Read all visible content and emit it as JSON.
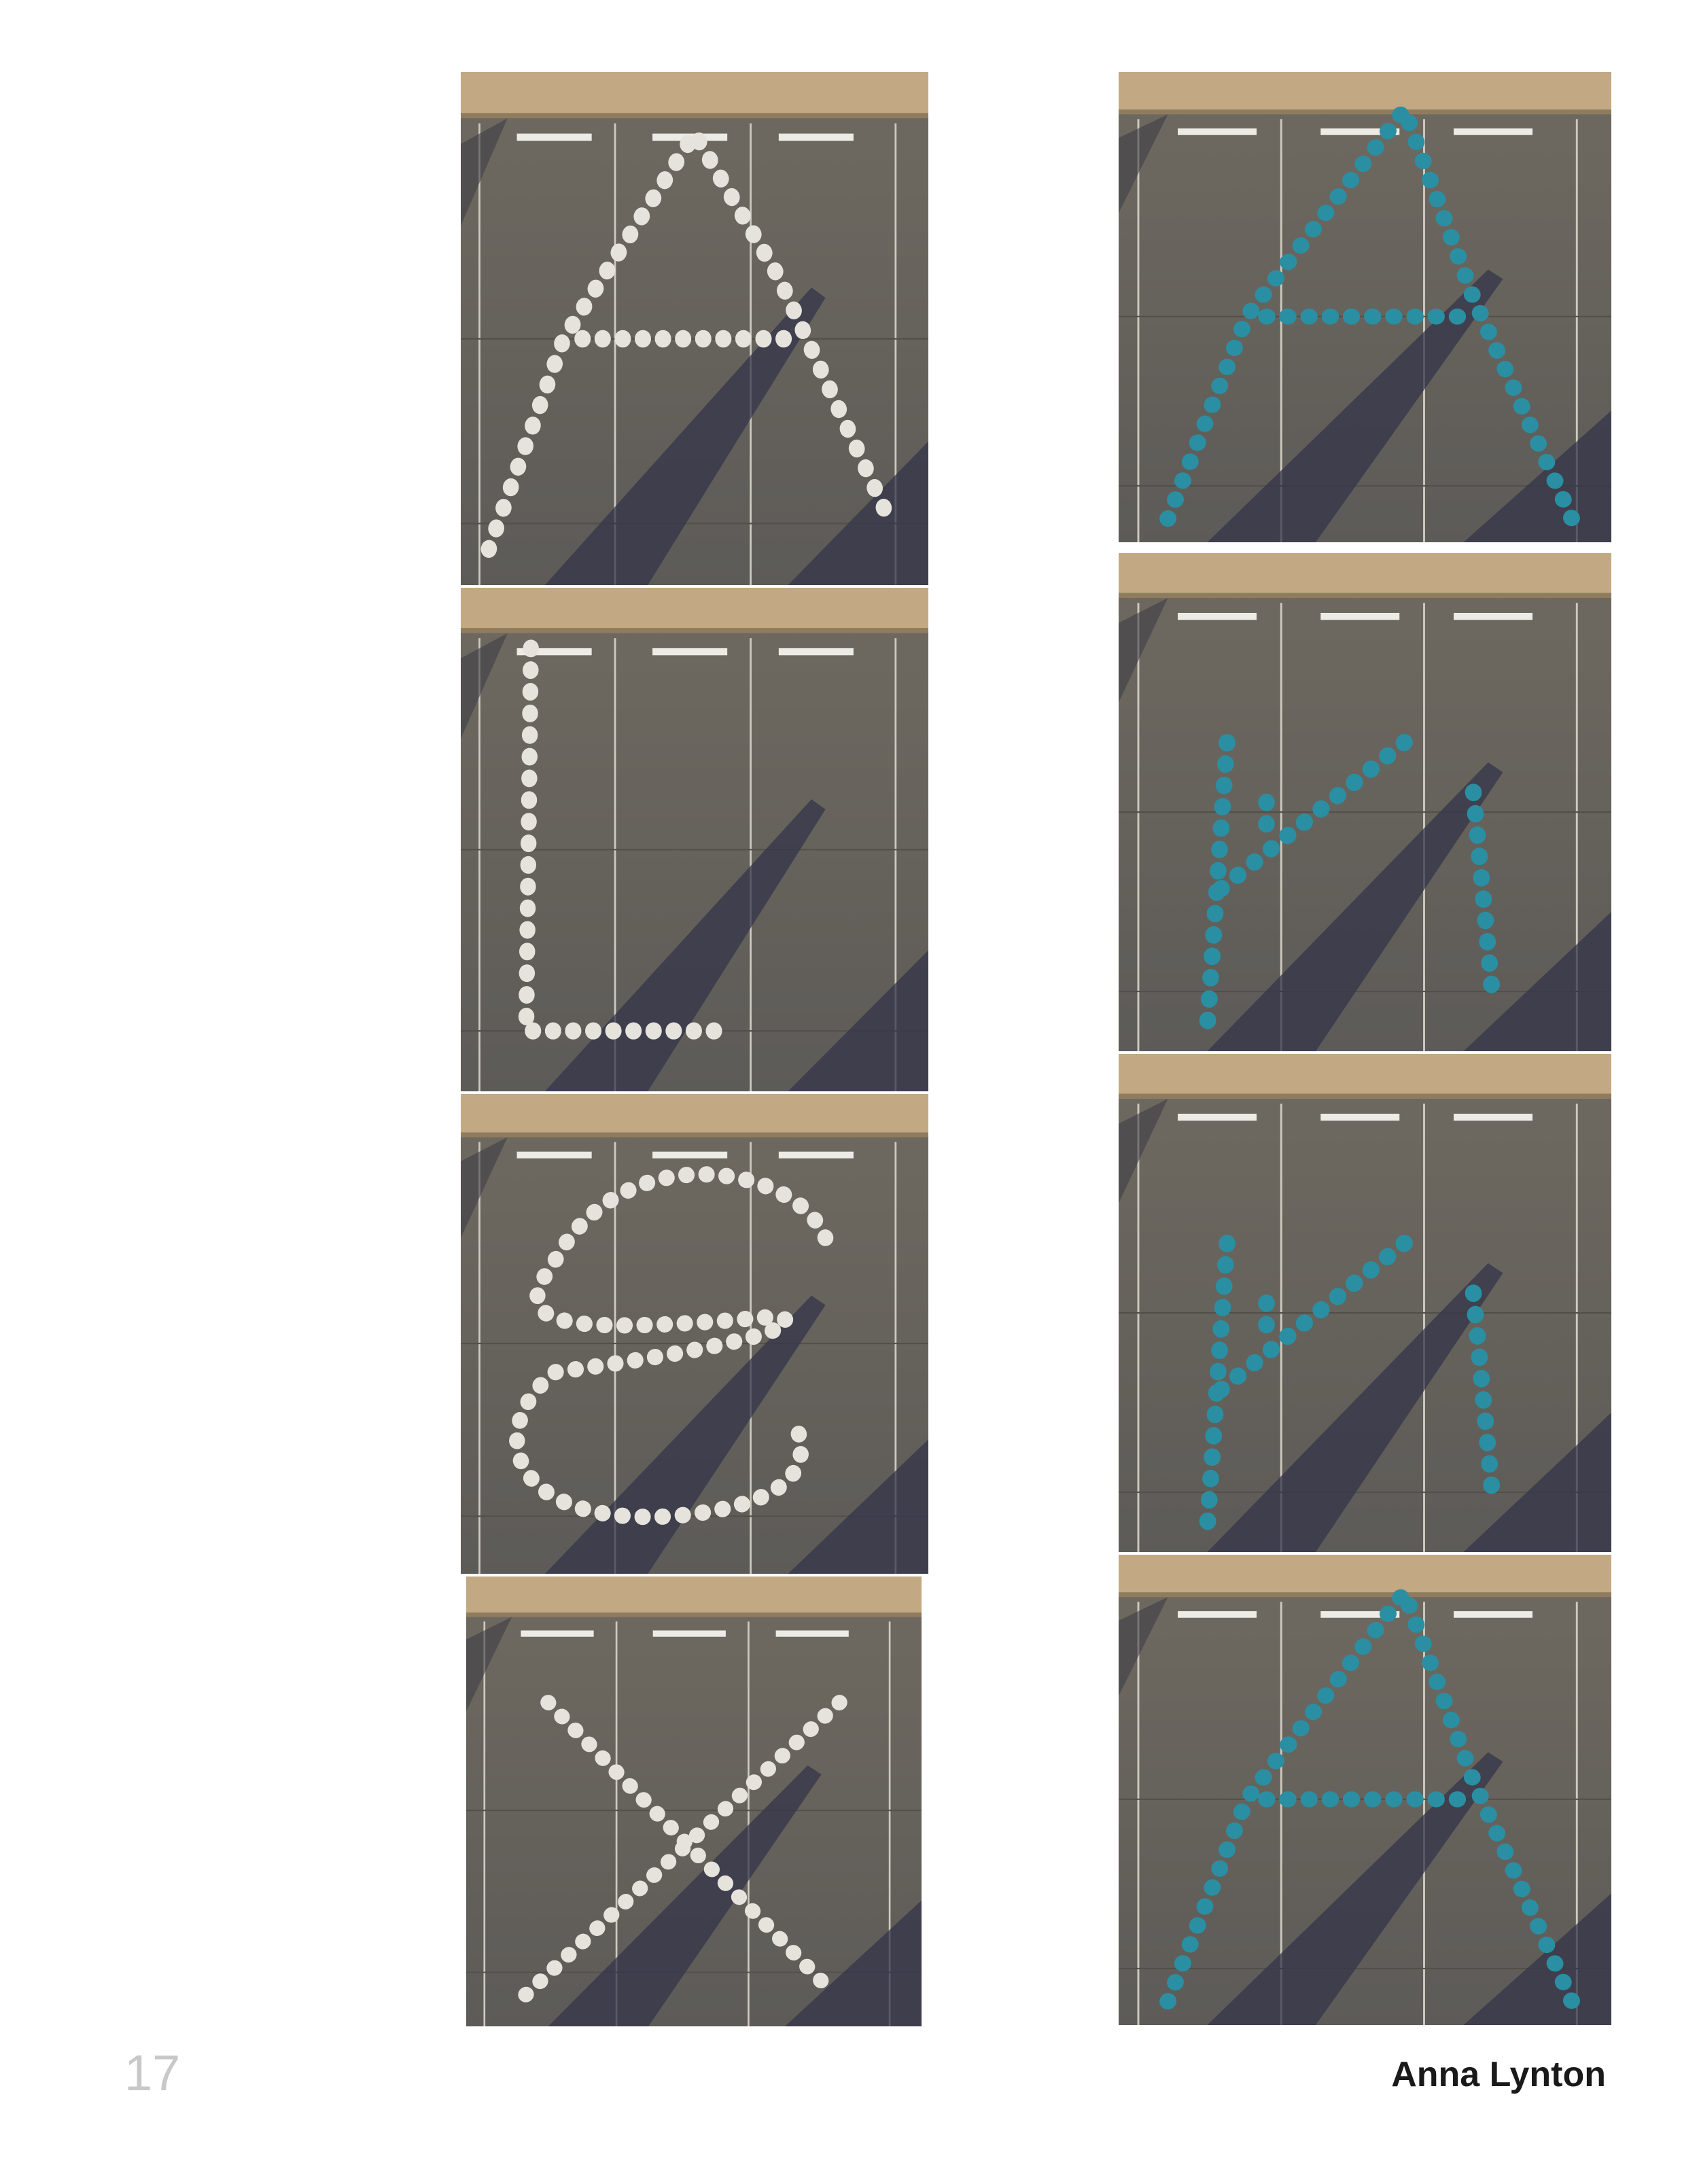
{
  "page": {
    "number": "17",
    "author": "Anna Lynton"
  }
}
